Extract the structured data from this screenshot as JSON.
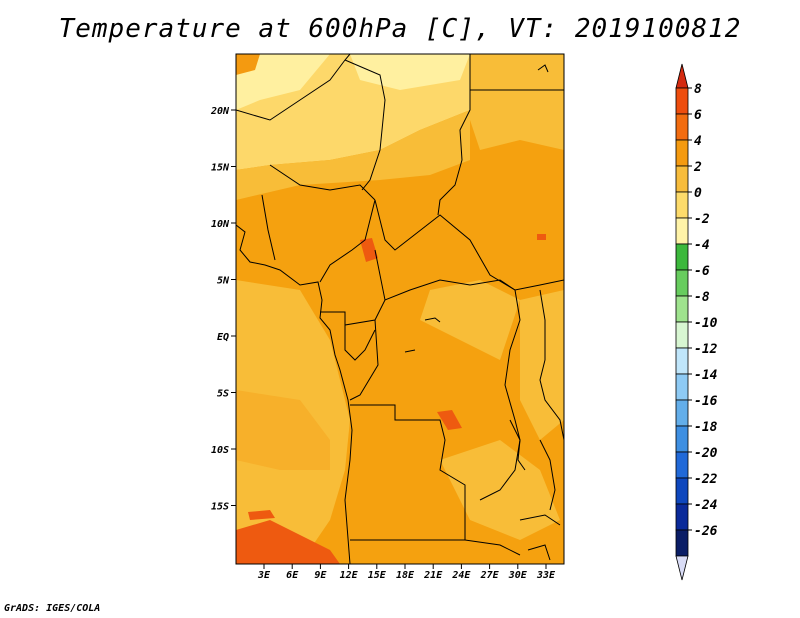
{
  "title": "Temperature at 600hPa [C], VT: 2019100812",
  "footer": "GrADS: IGES/COLA",
  "map": {
    "lat_labels": [
      "20N",
      "15N",
      "10N",
      "5N",
      "EQ",
      "5S",
      "10S",
      "15S"
    ],
    "lon_labels": [
      "3E",
      "6E",
      "9E",
      "12E",
      "15E",
      "18E",
      "21E",
      "24E",
      "27E",
      "30E",
      "33E"
    ],
    "extent": {
      "lon_min": 0,
      "lon_max": 35,
      "lat_min": -20,
      "lat_max": 25
    }
  },
  "colorbar": {
    "labels": [
      "8",
      "6",
      "4",
      "2",
      "0",
      "-2",
      "-4",
      "-6",
      "-8",
      "-10",
      "-12",
      "-14",
      "-16",
      "-18",
      "-20",
      "-22",
      "-24",
      "-26"
    ],
    "colors": [
      "#d42a10",
      "#ee4d0e",
      "#f26c10",
      "#f49a10",
      "#f7bc3c",
      "#fddb6b",
      "#fff3a8",
      "#3cb83c",
      "#67cc5e",
      "#9fe38e",
      "#d8f6d2",
      "#c0e6fb",
      "#8ecaf4",
      "#63aeea",
      "#3e8fe2",
      "#2169d8",
      "#0e47be",
      "#0a2a9a",
      "#0a1d66"
    ],
    "top_color": "#d42a10",
    "bottom_color": "#d9dcf6"
  },
  "palette": {
    "warm_hot": "#ee5a10",
    "warm_orange": "#f5a10f",
    "warm_light": "#f8bd38",
    "pale": "#fdd86a",
    "very_pale": "#fff0a0"
  }
}
